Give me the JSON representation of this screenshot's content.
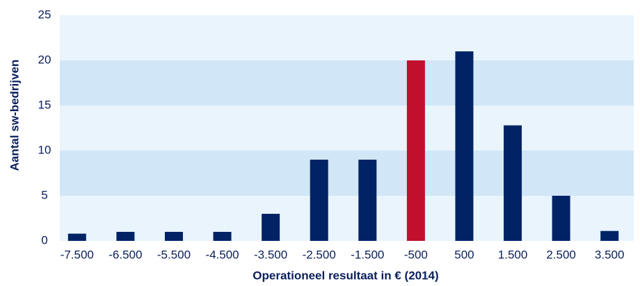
{
  "chart_data": {
    "type": "bar",
    "x_label": "Operationeel resultaat in € (2014)",
    "y_label": "Aantal sw-bedrijven",
    "categories": [
      "-7.500",
      "-6.500",
      "-5.500",
      "-4.500",
      "-3.500",
      "-2.500",
      "-1.500",
      "-500",
      "500",
      "1.500",
      "2.500",
      "3.500"
    ],
    "values": [
      0.8,
      1,
      1,
      1,
      3,
      9,
      9,
      20,
      21,
      12.8,
      5,
      1.1
    ],
    "colors": [
      "#002366",
      "#002366",
      "#002366",
      "#002366",
      "#002366",
      "#002366",
      "#002366",
      "#c0102e",
      "#002366",
      "#002366",
      "#002366",
      "#002366"
    ],
    "band_colors": [
      "#e9f4fd",
      "#d1e6f6"
    ],
    "ylim": [
      0,
      25
    ],
    "yticks": [
      0,
      5,
      10,
      15,
      20,
      25
    ]
  }
}
